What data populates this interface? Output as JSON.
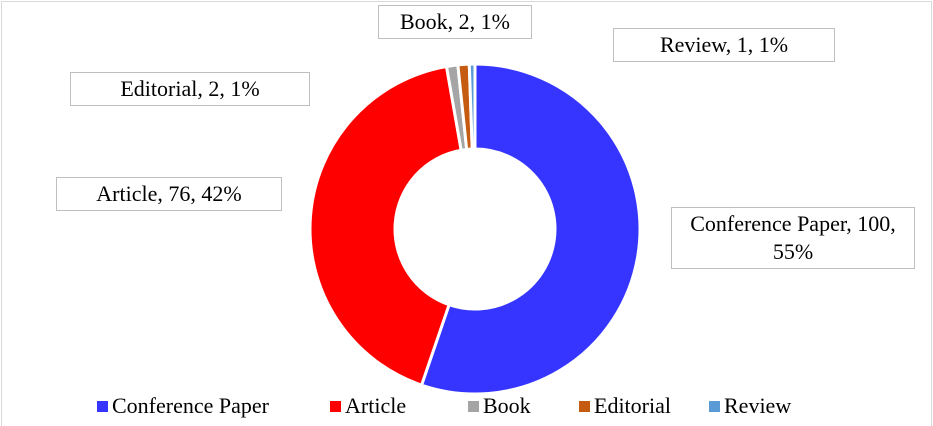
{
  "chart_data": {
    "type": "doughnut",
    "categories": [
      "Conference Paper",
      "Article",
      "Book",
      "Editorial",
      "Review"
    ],
    "values": [
      100,
      76,
      2,
      2,
      1
    ],
    "value_labels": [
      "Conference Paper, 100, 55%",
      "Article, 76, 42%",
      "Book, 2, 1%",
      "Editorial, 2, 1%",
      "Review, 1, 1%"
    ],
    "colors": [
      "#3535ff",
      "#ff0000",
      "#a5a5a5",
      "#c55a11",
      "#5b9bd5"
    ],
    "legend": "bottom"
  }
}
